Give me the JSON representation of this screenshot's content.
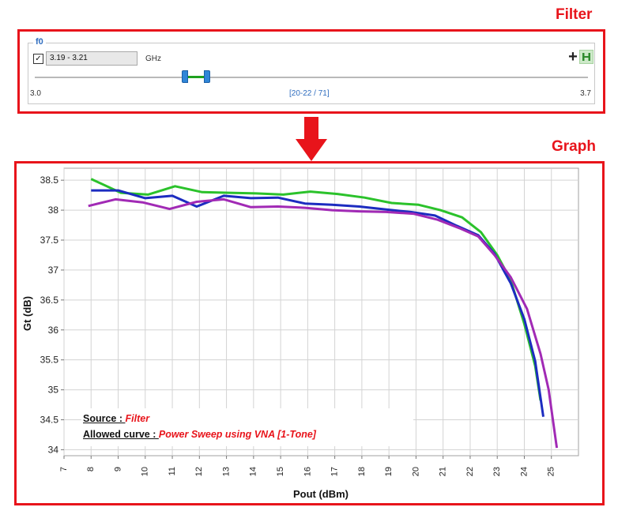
{
  "labels": {
    "filter": "Filter",
    "graph": "Graph"
  },
  "filter_panel": {
    "group_title": "f0",
    "checkbox_checked": true,
    "range_value": "3.19 - 3.21",
    "unit": "GHz",
    "scale_min": "3.0",
    "scale_max": "3.7",
    "selection_index": "[20-22 / 71]",
    "slider_range": [
      0.271,
      0.3
    ],
    "icons": [
      "plus-icon",
      "h-range-icon"
    ]
  },
  "annotation": {
    "source_label": "Source : ",
    "source_value": "Filter",
    "curve_label": "Allowed curve : ",
    "curve_value": "Power Sweep using VNA [1-Tone]"
  },
  "colors": {
    "accent_red": "#e8141b",
    "green": "#2bc22b",
    "blue": "#1c2cc0",
    "purple": "#a12ab5"
  },
  "chart_data": {
    "type": "line",
    "xlabel": "Pout (dBm)",
    "ylabel": "Gt (dB)",
    "xlim": [
      7,
      26
    ],
    "ylim": [
      33.9,
      38.7
    ],
    "xticks": [
      7,
      8,
      9,
      10,
      11,
      12,
      13,
      14,
      15,
      16,
      17,
      18,
      19,
      20,
      21,
      22,
      23,
      24,
      25
    ],
    "yticks": [
      34,
      34.5,
      35,
      35.5,
      36,
      36.5,
      37,
      37.5,
      38,
      38.5
    ],
    "ytick_labels": [
      "34",
      "34.5",
      "35",
      "35.5",
      "36",
      "36.5",
      "37",
      "37.5",
      "38",
      "38.5"
    ],
    "grid": true,
    "series": [
      {
        "color": "#2bc22b",
        "x": [
          8.0,
          9.1,
          10.1,
          11.1,
          12.1,
          13.1,
          14.1,
          15.1,
          16.1,
          17.1,
          18.1,
          19.1,
          20.1,
          20.9,
          21.7,
          22.4,
          23.0,
          23.5,
          24.0,
          24.4,
          24.6
        ],
        "y": [
          38.52,
          38.29,
          38.26,
          38.4,
          38.3,
          38.29,
          38.28,
          38.26,
          38.31,
          38.27,
          38.21,
          38.12,
          38.09,
          38.0,
          37.88,
          37.63,
          37.25,
          36.83,
          36.1,
          35.4,
          34.82
        ]
      },
      {
        "color": "#1c2cc0",
        "x": [
          8.0,
          9.0,
          10.0,
          11.0,
          11.9,
          12.9,
          13.9,
          14.9,
          15.9,
          16.9,
          17.9,
          18.9,
          19.8,
          20.7,
          21.5,
          22.3,
          22.9,
          23.5,
          24.0,
          24.4,
          24.7
        ],
        "y": [
          38.33,
          38.33,
          38.2,
          38.24,
          38.06,
          38.24,
          38.2,
          38.21,
          38.11,
          38.09,
          38.06,
          38.01,
          37.97,
          37.91,
          37.74,
          37.58,
          37.27,
          36.78,
          36.18,
          35.48,
          34.55
        ]
      },
      {
        "color": "#a12ab5",
        "x": [
          7.9,
          8.9,
          9.9,
          10.9,
          11.9,
          12.9,
          13.9,
          14.9,
          15.9,
          16.9,
          17.9,
          18.9,
          19.9,
          20.8,
          21.6,
          22.3,
          22.9,
          23.5,
          24.1,
          24.6,
          24.9,
          25.2
        ],
        "y": [
          38.07,
          38.18,
          38.13,
          38.02,
          38.14,
          38.18,
          38.05,
          38.06,
          38.04,
          38.0,
          37.98,
          37.97,
          37.94,
          37.84,
          37.7,
          37.56,
          37.25,
          36.88,
          36.35,
          35.6,
          35.0,
          34.03
        ]
      }
    ]
  }
}
